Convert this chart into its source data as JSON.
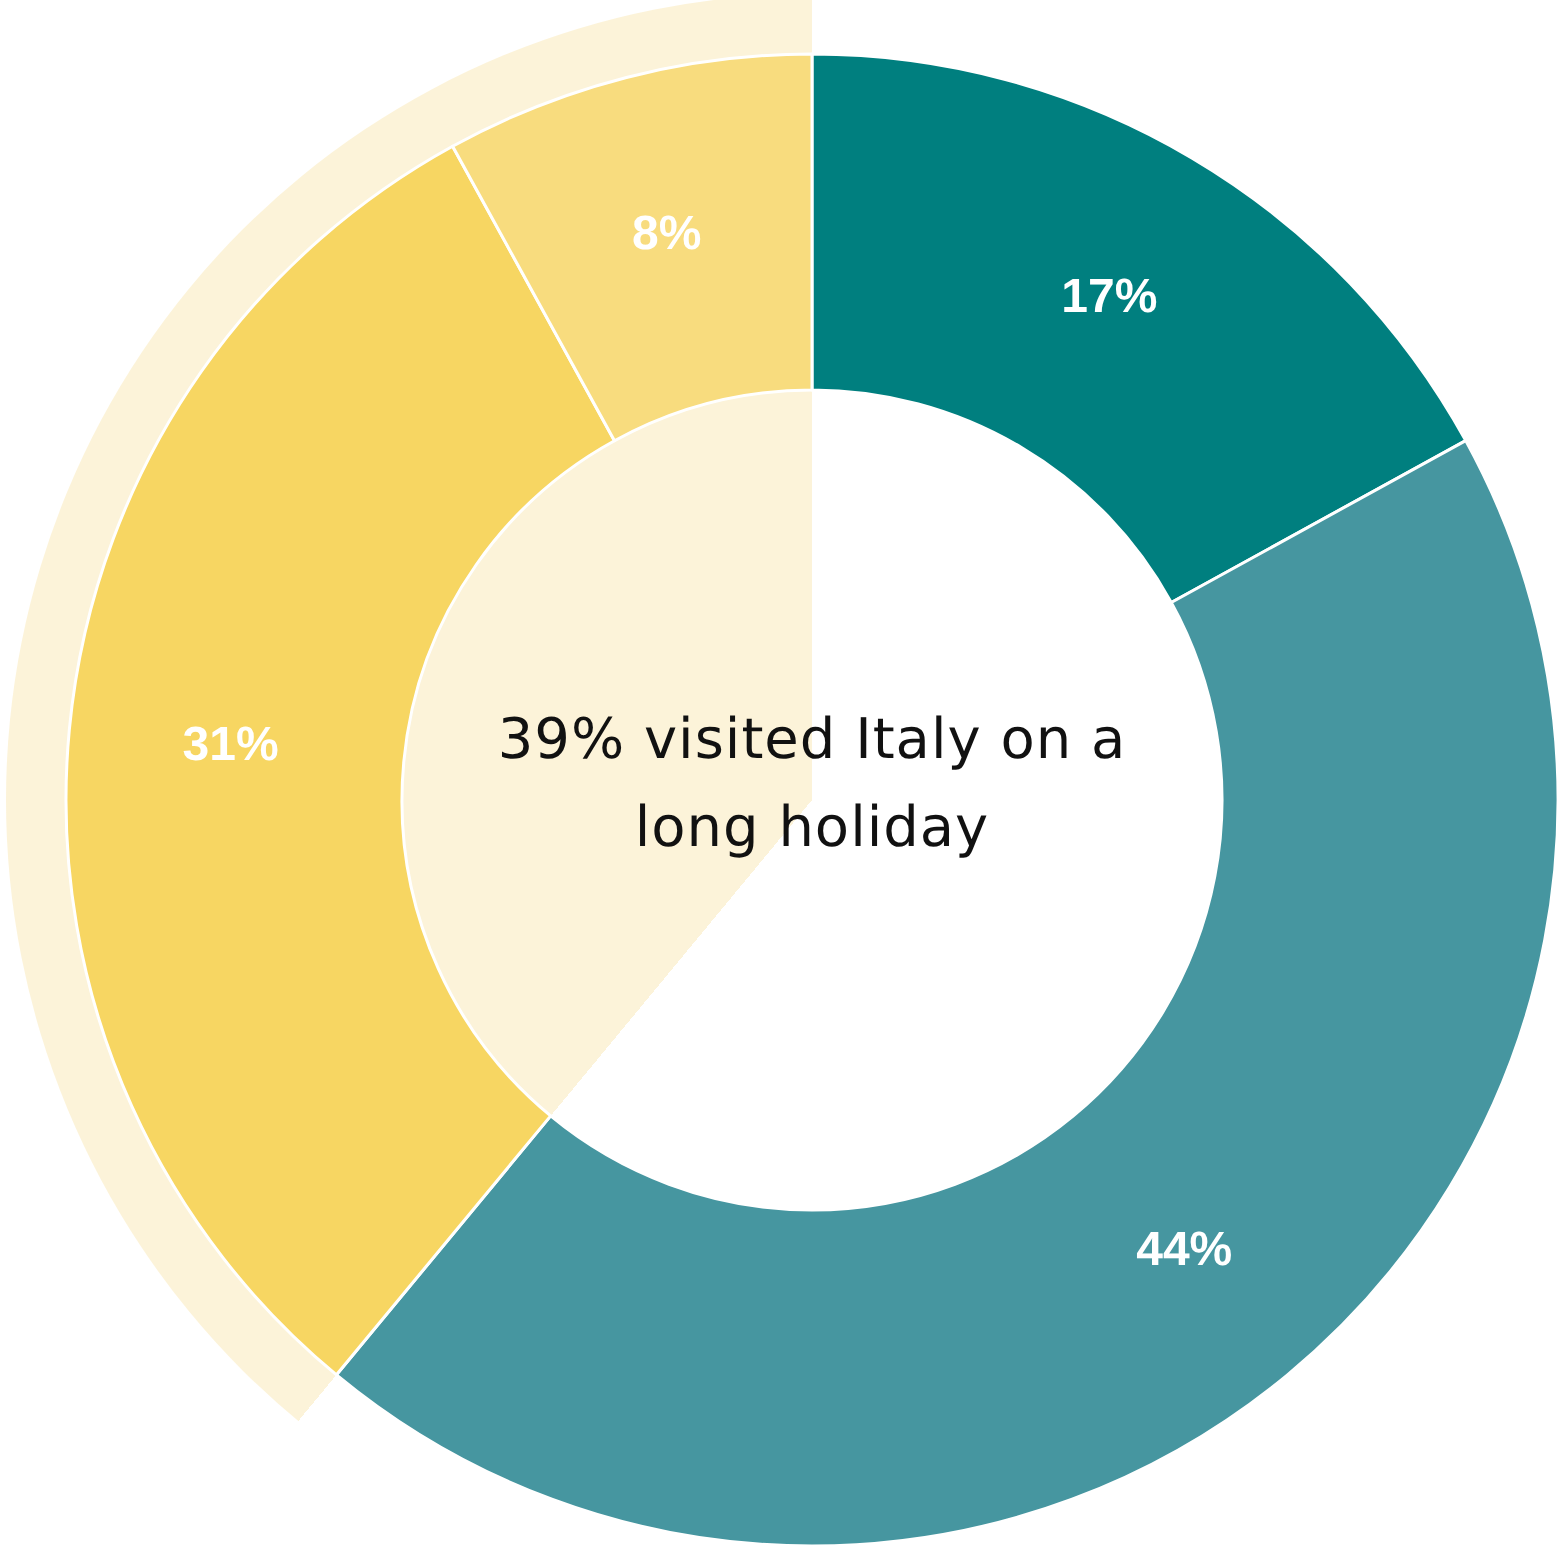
{
  "chart_data": {
    "type": "donut",
    "categories": [
      null,
      null,
      null,
      null
    ],
    "values": [
      17,
      44,
      31,
      8
    ],
    "value_labels": [
      "17%",
      "44%",
      "31%",
      "8%"
    ],
    "colors": [
      "#007f7f",
      "#4696a0",
      "#f7d662",
      "#f8dc7e"
    ],
    "annotations": [
      "39% visited Italy on a long holiday"
    ]
  }
}
